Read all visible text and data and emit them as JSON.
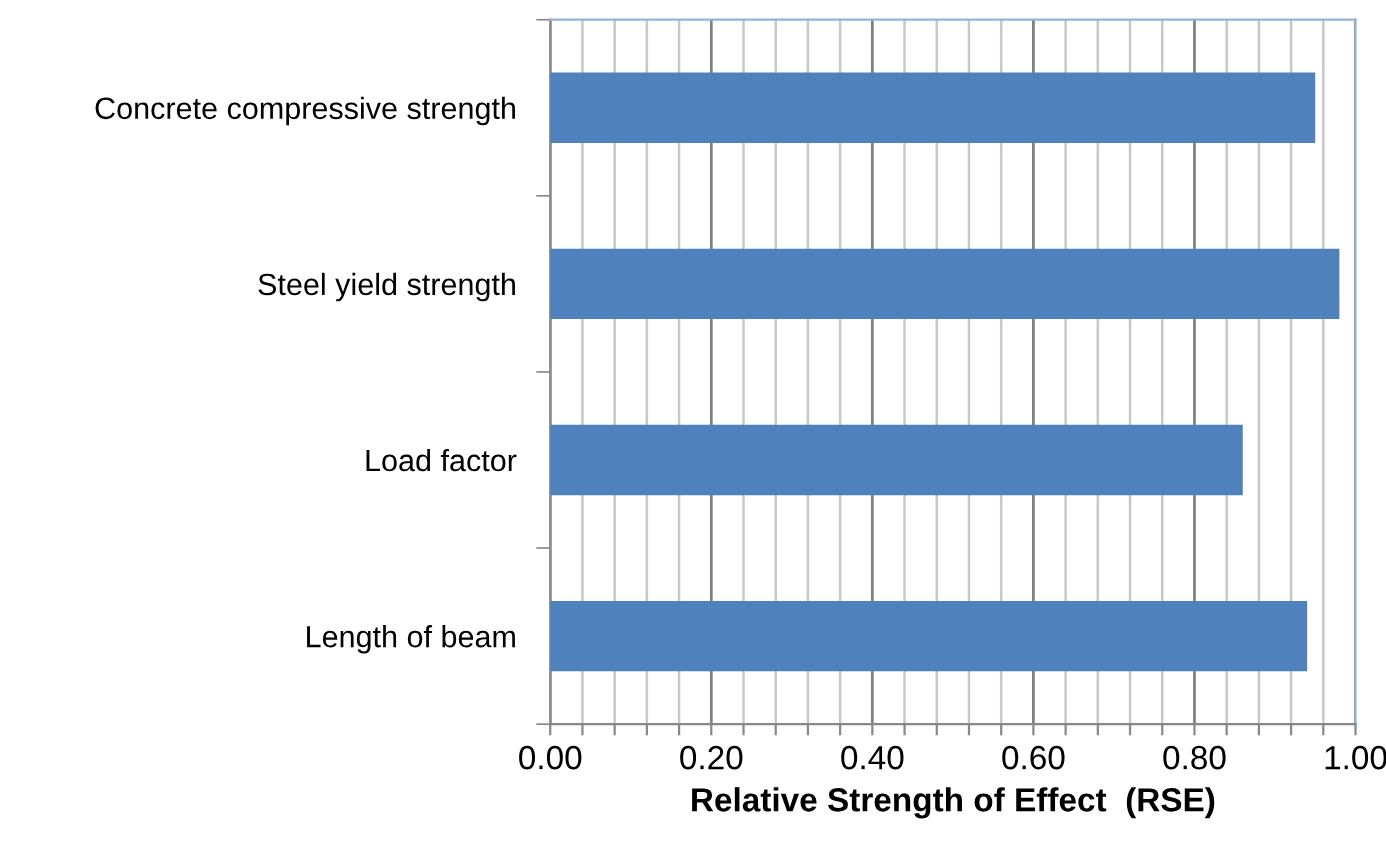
{
  "chart_data": {
    "type": "bar",
    "orientation": "horizontal",
    "xlabel": "Relative Strength of Effect  (RSE)",
    "categories": [
      "Concrete compressive strength",
      "Steel yield strength",
      "Load factor",
      "Length of beam"
    ],
    "values": [
      0.95,
      0.98,
      0.86,
      0.94
    ],
    "color": "#4f81bd",
    "xlim": [
      0,
      1
    ],
    "xticks": [
      {
        "value": 0,
        "label": "0.00"
      },
      {
        "value": 0.04,
        "label": null
      },
      {
        "value": 0.08,
        "label": null
      },
      {
        "value": 0.12,
        "label": null
      },
      {
        "value": 0.16,
        "label": null
      },
      {
        "value": 0.2,
        "label": "0.20"
      },
      {
        "value": 0.24,
        "label": null
      },
      {
        "value": 0.28,
        "label": null
      },
      {
        "value": 0.32,
        "label": null
      },
      {
        "value": 0.36,
        "label": null
      },
      {
        "value": 0.4,
        "label": "0.40"
      },
      {
        "value": 0.44,
        "label": null
      },
      {
        "value": 0.48,
        "label": null
      },
      {
        "value": 0.52,
        "label": null
      },
      {
        "value": 0.56,
        "label": null
      },
      {
        "value": 0.6,
        "label": "0.60"
      },
      {
        "value": 0.64,
        "label": null
      },
      {
        "value": 0.68,
        "label": null
      },
      {
        "value": 0.72,
        "label": null
      },
      {
        "value": 0.76,
        "label": null
      },
      {
        "value": 0.8,
        "label": "0.80"
      },
      {
        "value": 0.84,
        "label": null
      },
      {
        "value": 0.88,
        "label": null
      },
      {
        "value": 0.92,
        "label": null
      },
      {
        "value": 0.96,
        "label": null
      },
      {
        "value": 1.0,
        "label": "1.00"
      }
    ],
    "grid": "x",
    "legend": false
  }
}
